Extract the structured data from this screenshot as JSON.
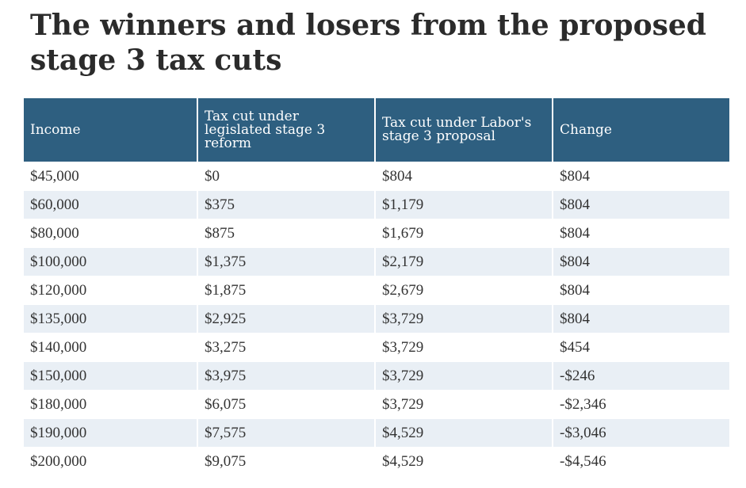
{
  "title": "The winners and losers from the proposed stage 3 tax cuts",
  "colors": {
    "header_bg": "#2e5f80",
    "stripe_bg": "#e9eff5",
    "text": "#333333"
  },
  "chart_data": {
    "type": "table",
    "title": "The winners and losers from the proposed stage 3 tax cuts",
    "columns": [
      "Income",
      "Tax cut under legislated stage 3 reform",
      "Tax cut under Labor's stage 3 proposal",
      "Change"
    ],
    "rows": [
      [
        "$45,000",
        "$0",
        "$804",
        "$804"
      ],
      [
        "$60,000",
        "$375",
        "$1,179",
        "$804"
      ],
      [
        "$80,000",
        "$875",
        "$1,679",
        "$804"
      ],
      [
        "$100,000",
        "$1,375",
        "$2,179",
        "$804"
      ],
      [
        "$120,000",
        "$1,875",
        "$2,679",
        "$804"
      ],
      [
        "$135,000",
        "$2,925",
        "$3,729",
        "$804"
      ],
      [
        "$140,000",
        "$3,275",
        "$3,729",
        "$454"
      ],
      [
        "$150,000",
        "$3,975",
        "$3,729",
        "-$246"
      ],
      [
        "$180,000",
        "$6,075",
        "$3,729",
        "-$2,346"
      ],
      [
        "$190,000",
        "$7,575",
        "$4,529",
        "-$3,046"
      ],
      [
        "$200,000",
        "$9,075",
        "$4,529",
        "-$4,546"
      ]
    ]
  }
}
